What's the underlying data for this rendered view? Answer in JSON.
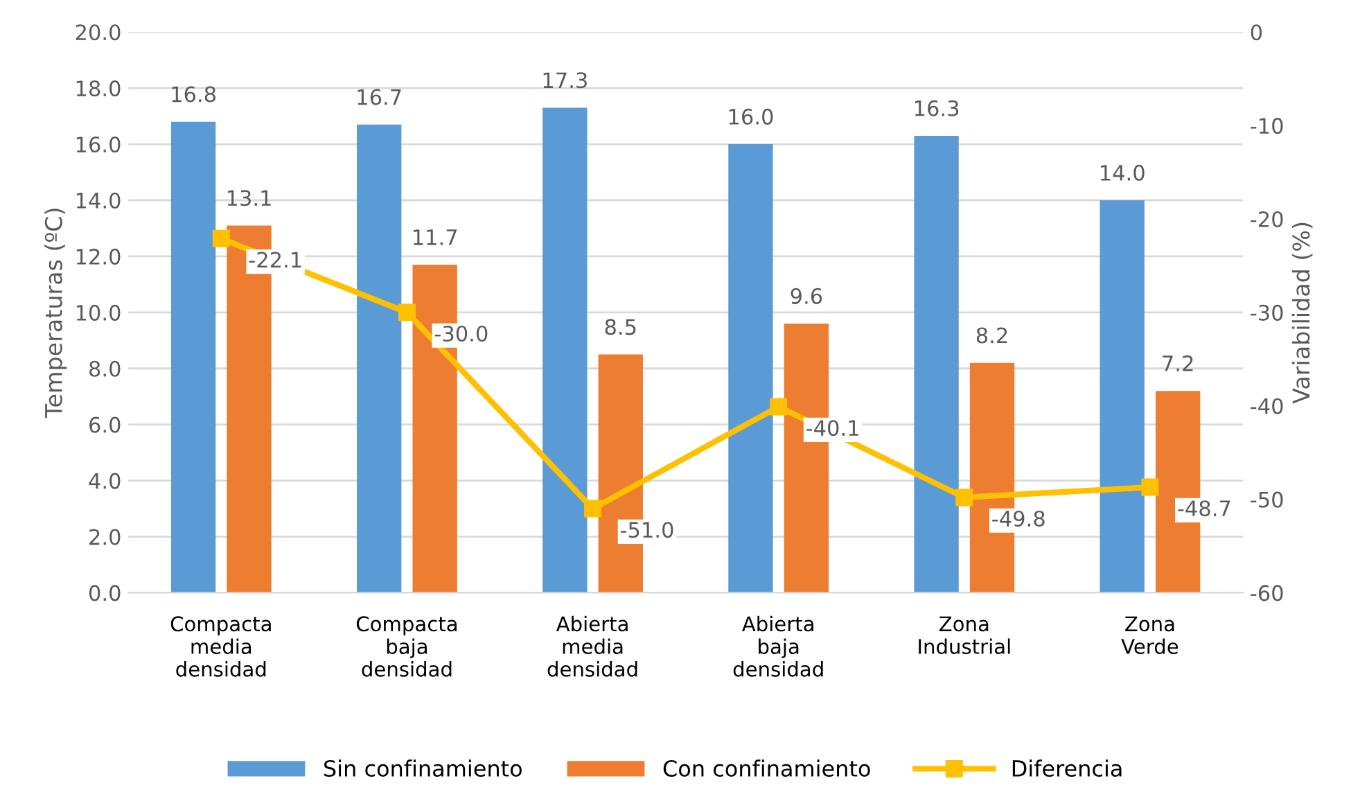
{
  "chart_data": {
    "type": "bar",
    "ylabel": "Temperaturas (ºC)",
    "y2label": "Variabilidad (%)",
    "categories": [
      "Compacta\nmedia\ndensidad",
      "Compacta\nbaja\ndensidad",
      "Abierta\nmedia\ndensidad",
      "Abierta\nbaja\ndensidad",
      "Zona\nIndustrial",
      "Zona\nVerde"
    ],
    "series": [
      {
        "name": "Sin confinamiento",
        "color": "#5b9bd5",
        "values": [
          16.8,
          16.7,
          17.3,
          16.0,
          16.3,
          14.0
        ],
        "value_labels": [
          "16.8",
          "16.7",
          "17.3",
          "16.0",
          "16.3",
          "14.0"
        ]
      },
      {
        "name": "Con confinamiento",
        "color": "#ed7d31",
        "values": [
          13.1,
          11.7,
          8.5,
          9.6,
          8.2,
          7.2
        ],
        "value_labels": [
          "13.1",
          "11.7",
          "8.5",
          "9.6",
          "8.2",
          "7.2"
        ]
      },
      {
        "name": "Diferencia",
        "type": "line",
        "axis": "y2",
        "color": "#ffc000",
        "marker": "square",
        "line_style": "solid",
        "values": [
          -22.1,
          -30.0,
          -51.0,
          -40.1,
          -49.8,
          -48.7
        ],
        "value_labels": [
          "-22.1",
          "-30.0",
          "-51.0",
          "-40.1",
          "-49.8",
          "-48.7"
        ]
      }
    ],
    "ylim": [
      0,
      20
    ],
    "yticks": [
      {
        "value": 0,
        "label": "0.0"
      },
      {
        "value": 2,
        "label": "2.0"
      },
      {
        "value": 4,
        "label": "4.0"
      },
      {
        "value": 6,
        "label": "6.0"
      },
      {
        "value": 8,
        "label": "8.0"
      },
      {
        "value": 10,
        "label": "10.0"
      },
      {
        "value": 12,
        "label": "12.0"
      },
      {
        "value": 14,
        "label": "14.0"
      },
      {
        "value": 16,
        "label": "16.0"
      },
      {
        "value": 18,
        "label": "18.0"
      },
      {
        "value": 20,
        "label": "20.0"
      }
    ],
    "y2lim": [
      -60,
      0
    ],
    "y2ticks": [
      -60,
      -50,
      -40,
      -30,
      -20,
      -10,
      0
    ],
    "grid": "y",
    "legend": "bottom"
  }
}
